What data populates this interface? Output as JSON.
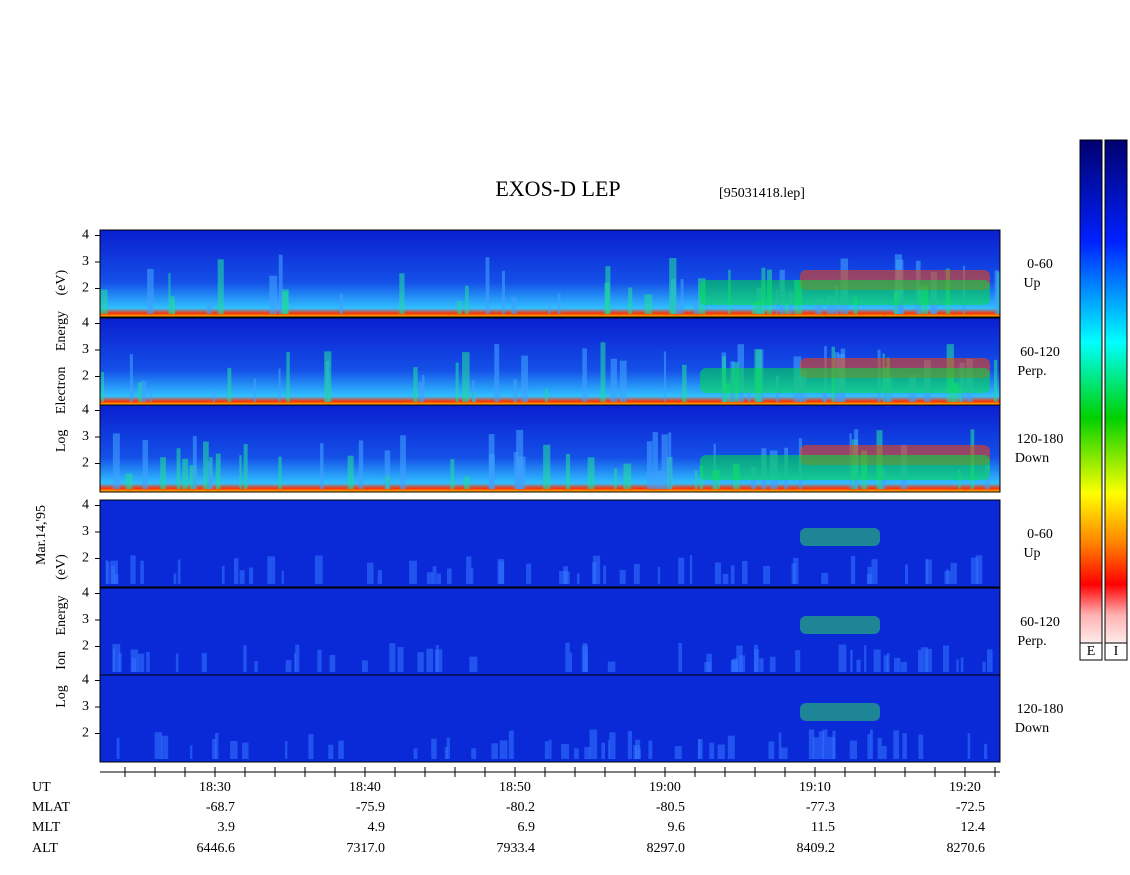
{
  "title": "EXOS-D LEP",
  "file": "[95031418.lep]",
  "date": "Mar.14,'95",
  "groups": [
    {
      "axis_label": "Log Electron Energy (eV)",
      "panels": [
        {
          "label": "0-60",
          "sublabel": "Up",
          "yticks": [
            2,
            3,
            4
          ]
        },
        {
          "label": "60-120",
          "sublabel": "Perp.",
          "yticks": [
            2,
            3,
            4
          ]
        },
        {
          "label": "120-180",
          "sublabel": "Down",
          "yticks": [
            2,
            3,
            4
          ]
        }
      ]
    },
    {
      "axis_label": "Log Ion Energy (eV)",
      "panels": [
        {
          "label": "0-60",
          "sublabel": "Up",
          "yticks": [
            2,
            3,
            4
          ]
        },
        {
          "label": "60-120",
          "sublabel": "Perp.",
          "yticks": [
            2,
            3,
            4
          ]
        },
        {
          "label": "120-180",
          "sublabel": "Down",
          "yticks": [
            2,
            3,
            4
          ]
        }
      ]
    }
  ],
  "colorbar_labels": [
    "E",
    "I"
  ],
  "time_axis": {
    "row_labels": [
      "UT",
      "MLAT",
      "MLT",
      "ALT"
    ],
    "columns": [
      [
        "18:30",
        "-68.7",
        "3.9",
        "6446.6"
      ],
      [
        "18:40",
        "-75.9",
        "4.9",
        "7317.0"
      ],
      [
        "18:50",
        "-80.2",
        "6.9",
        "7933.4"
      ],
      [
        "19:00",
        "-80.5",
        "9.6",
        "8297.0"
      ],
      [
        "19:10",
        "-77.3",
        "11.5",
        "8409.2"
      ],
      [
        "19:20",
        "-72.5",
        "12.4",
        "8270.6"
      ]
    ]
  }
}
